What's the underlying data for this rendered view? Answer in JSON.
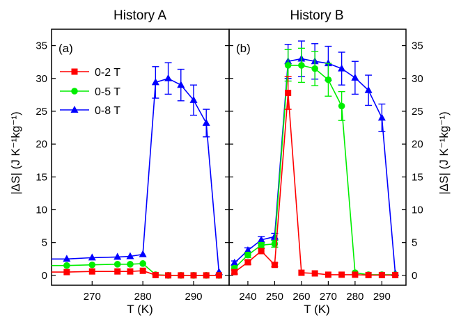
{
  "colors": {
    "0-2 T": "#ff0000",
    "0-5 T": "#00ee00",
    "0-8 T": "#0000ff",
    "frame": "#000000"
  },
  "chart_data": [
    {
      "type": "line",
      "title": "History A",
      "panel_label": "(a)",
      "xlabel": "T (K)",
      "ylabel": "|ΔS| (J K⁻¹kg⁻¹)",
      "xlim": [
        262,
        297
      ],
      "ylim": [
        -1.5,
        37.5
      ],
      "xticks": [
        270,
        280,
        290
      ],
      "yticks": [
        0,
        5,
        10,
        15,
        20,
        25,
        30,
        35
      ],
      "grid": false,
      "legend_position": "top-left",
      "series": [
        {
          "name": "0-2 T",
          "marker": "square",
          "line_start_x": 262,
          "x": [
            265,
            270,
            275,
            277.5,
            280,
            282.5,
            285,
            287.5,
            290,
            292.5,
            295
          ],
          "y": [
            0.5,
            0.6,
            0.6,
            0.6,
            0.7,
            0.05,
            0.0,
            0.0,
            0.0,
            0.0,
            0.0
          ],
          "err": [
            0,
            0,
            0,
            0,
            0,
            0,
            0,
            0,
            0,
            0,
            0
          ]
        },
        {
          "name": "0-5 T",
          "marker": "circle",
          "line_start_x": 262,
          "x": [
            265,
            270,
            275,
            277.5,
            280,
            282.5,
            285,
            287.5,
            290,
            292.5,
            295
          ],
          "y": [
            1.5,
            1.6,
            1.7,
            1.7,
            1.8,
            0.1,
            0.0,
            0.0,
            0.0,
            0.0,
            0.0
          ],
          "err": [
            0,
            0,
            0,
            0,
            0,
            0,
            0,
            0,
            0,
            0,
            0
          ]
        },
        {
          "name": "0-8 T",
          "marker": "triangle",
          "line_start_x": 262,
          "x": [
            265,
            270,
            275,
            277.5,
            280,
            282.5,
            285,
            287.5,
            290,
            292.5,
            295
          ],
          "y": [
            2.5,
            2.7,
            2.8,
            2.9,
            3.2,
            29.4,
            30.0,
            29.0,
            26.7,
            23.2,
            0.5
          ],
          "err": [
            0,
            0,
            0,
            0,
            0,
            2.4,
            2.4,
            2.4,
            2.3,
            2.1,
            0
          ]
        }
      ]
    },
    {
      "type": "line",
      "title": "History B",
      "panel_label": "(b)",
      "xlabel": "T (K)",
      "ylabel": "|ΔS| (J K⁻¹kg⁻¹)",
      "xlim": [
        233,
        299
      ],
      "ylim": [
        -1.5,
        37.5
      ],
      "xticks": [
        240,
        250,
        260,
        270,
        280,
        290
      ],
      "yticks": [
        0,
        5,
        10,
        15,
        20,
        25,
        30,
        35
      ],
      "grid": false,
      "series": [
        {
          "name": "0-2 T",
          "marker": "square",
          "x": [
            235,
            240,
            245,
            250,
            255,
            260,
            265,
            270,
            275,
            280,
            285,
            290,
            295
          ],
          "y": [
            0.5,
            2.0,
            3.7,
            1.6,
            27.8,
            0.4,
            0.3,
            0.1,
            0.1,
            0.1,
            0.05,
            0.05,
            0.05
          ],
          "err": [
            0.3,
            0.3,
            0.4,
            0.3,
            2.5,
            0,
            0,
            0,
            0,
            0,
            0,
            0,
            0
          ]
        },
        {
          "name": "0-5 T",
          "marker": "circle",
          "x": [
            235,
            240,
            245,
            250,
            255,
            260,
            265,
            270,
            275,
            280,
            285,
            290,
            295
          ],
          "y": [
            1.1,
            3.1,
            4.6,
            4.8,
            32.0,
            32.0,
            31.5,
            29.8,
            25.8,
            0.4,
            0.1,
            0.1,
            0.1
          ],
          "err": [
            0.3,
            0.4,
            0.4,
            0.5,
            2.4,
            2.6,
            2.6,
            2.5,
            2.2,
            0,
            0,
            0,
            0
          ]
        },
        {
          "name": "0-8 T",
          "marker": "triangle",
          "x": [
            235,
            240,
            245,
            250,
            255,
            260,
            265,
            270,
            275,
            280,
            285,
            290,
            295
          ],
          "y": [
            1.9,
            3.8,
            5.4,
            5.9,
            32.6,
            33.0,
            32.6,
            32.3,
            31.5,
            30.1,
            28.2,
            24.0,
            0.3
          ],
          "err": [
            0.3,
            0.4,
            0.5,
            0.5,
            2.6,
            2.7,
            2.7,
            2.6,
            2.5,
            2.5,
            2.3,
            2.1,
            0
          ]
        }
      ]
    }
  ]
}
